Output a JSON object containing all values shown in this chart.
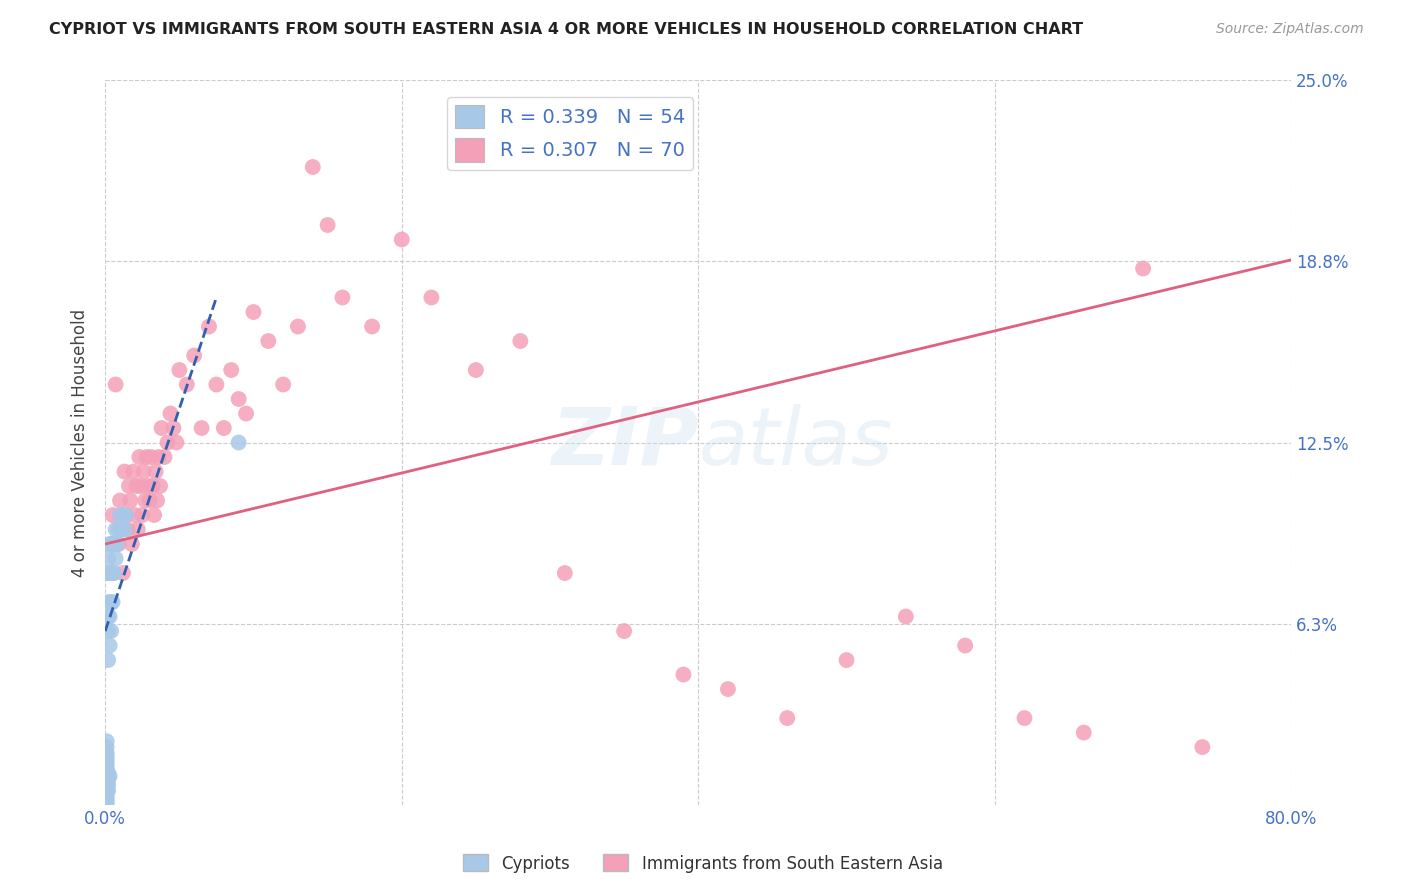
{
  "title": "CYPRIOT VS IMMIGRANTS FROM SOUTH EASTERN ASIA 4 OR MORE VEHICLES IN HOUSEHOLD CORRELATION CHART",
  "source": "Source: ZipAtlas.com",
  "ylabel_label": "4 or more Vehicles in Household",
  "cypriot_R": 0.339,
  "cypriot_N": 54,
  "immigrant_R": 0.307,
  "immigrant_N": 70,
  "cypriot_color": "#a8c8e8",
  "immigrant_color": "#f4a0b8",
  "cypriot_line_color": "#3060b0",
  "immigrant_line_color": "#e06080",
  "xlim": [
    0.0,
    0.8
  ],
  "ylim": [
    0.0,
    0.25
  ],
  "grid_color": "#cccccc",
  "xticks": [
    0.0,
    0.8
  ],
  "xticklabels": [
    "0.0%",
    "80.0%"
  ],
  "yticks_right": [
    0.0625,
    0.125,
    0.1875,
    0.25
  ],
  "ytick_labels_right": [
    "6.3%",
    "12.5%",
    "18.8%",
    "25.0%"
  ],
  "cypriot_scatter_x": [
    0.001,
    0.001,
    0.001,
    0.001,
    0.001,
    0.001,
    0.001,
    0.001,
    0.001,
    0.001,
    0.001,
    0.001,
    0.001,
    0.001,
    0.001,
    0.001,
    0.001,
    0.001,
    0.001,
    0.001,
    0.002,
    0.002,
    0.002,
    0.002,
    0.002,
    0.002,
    0.002,
    0.002,
    0.002,
    0.002,
    0.003,
    0.003,
    0.003,
    0.003,
    0.003,
    0.004,
    0.004,
    0.004,
    0.004,
    0.005,
    0.005,
    0.005,
    0.006,
    0.006,
    0.007,
    0.007,
    0.008,
    0.009,
    0.01,
    0.011,
    0.012,
    0.013,
    0.014,
    0.09
  ],
  "cypriot_scatter_y": [
    0.0,
    0.001,
    0.002,
    0.003,
    0.004,
    0.005,
    0.006,
    0.007,
    0.008,
    0.01,
    0.011,
    0.012,
    0.013,
    0.014,
    0.015,
    0.016,
    0.017,
    0.018,
    0.02,
    0.022,
    0.005,
    0.007,
    0.009,
    0.011,
    0.05,
    0.06,
    0.065,
    0.07,
    0.08,
    0.085,
    0.01,
    0.055,
    0.065,
    0.08,
    0.09,
    0.06,
    0.07,
    0.08,
    0.09,
    0.07,
    0.08,
    0.09,
    0.08,
    0.09,
    0.085,
    0.095,
    0.09,
    0.095,
    0.1,
    0.095,
    0.1,
    0.095,
    0.1,
    0.125
  ],
  "immigrant_scatter_x": [
    0.005,
    0.007,
    0.009,
    0.01,
    0.012,
    0.013,
    0.014,
    0.015,
    0.016,
    0.017,
    0.018,
    0.019,
    0.02,
    0.021,
    0.022,
    0.023,
    0.024,
    0.025,
    0.026,
    0.027,
    0.028,
    0.029,
    0.03,
    0.031,
    0.032,
    0.033,
    0.034,
    0.035,
    0.036,
    0.037,
    0.038,
    0.04,
    0.042,
    0.044,
    0.046,
    0.048,
    0.05,
    0.055,
    0.06,
    0.065,
    0.07,
    0.075,
    0.08,
    0.085,
    0.09,
    0.095,
    0.1,
    0.11,
    0.12,
    0.13,
    0.14,
    0.15,
    0.16,
    0.18,
    0.2,
    0.22,
    0.25,
    0.28,
    0.31,
    0.35,
    0.39,
    0.42,
    0.46,
    0.5,
    0.54,
    0.58,
    0.62,
    0.66,
    0.7,
    0.74
  ],
  "immigrant_scatter_y": [
    0.1,
    0.145,
    0.09,
    0.105,
    0.08,
    0.115,
    0.1,
    0.095,
    0.11,
    0.105,
    0.09,
    0.115,
    0.1,
    0.11,
    0.095,
    0.12,
    0.11,
    0.1,
    0.115,
    0.105,
    0.12,
    0.11,
    0.105,
    0.12,
    0.11,
    0.1,
    0.115,
    0.105,
    0.12,
    0.11,
    0.13,
    0.12,
    0.125,
    0.135,
    0.13,
    0.125,
    0.15,
    0.145,
    0.155,
    0.13,
    0.165,
    0.145,
    0.13,
    0.15,
    0.14,
    0.135,
    0.17,
    0.16,
    0.145,
    0.165,
    0.22,
    0.2,
    0.175,
    0.165,
    0.195,
    0.175,
    0.15,
    0.16,
    0.08,
    0.06,
    0.045,
    0.04,
    0.03,
    0.05,
    0.065,
    0.055,
    0.03,
    0.025,
    0.185,
    0.02
  ],
  "cypriot_line_x": [
    0.0,
    0.075
  ],
  "cypriot_line_y": [
    0.06,
    0.175
  ],
  "immigrant_line_x": [
    0.0,
    0.8
  ],
  "immigrant_line_y": [
    0.09,
    0.188
  ]
}
